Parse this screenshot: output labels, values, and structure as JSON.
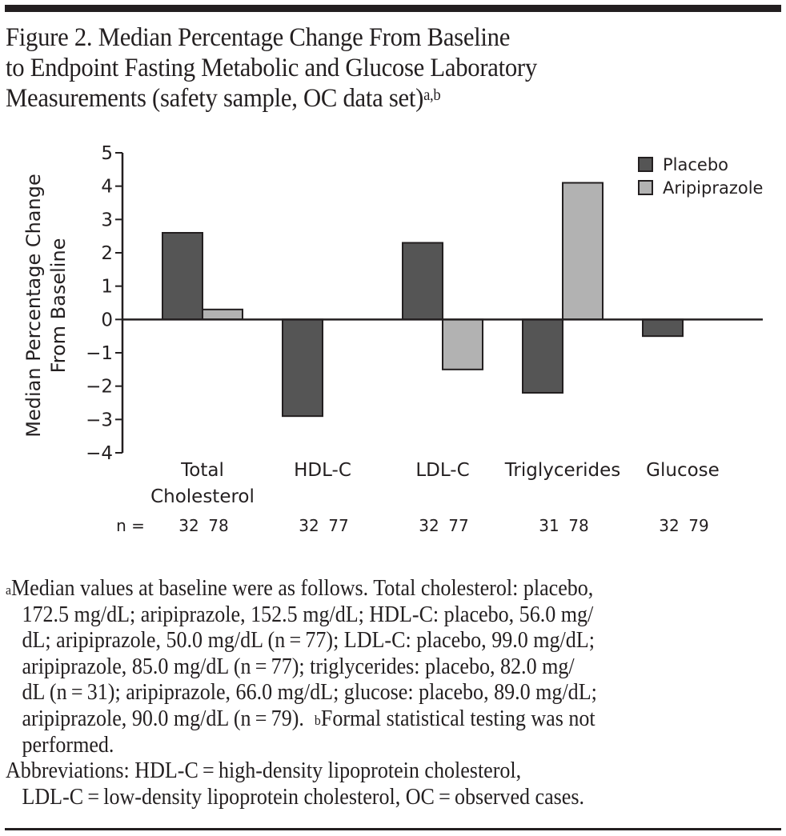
{
  "figure": {
    "title_lines": [
      "Figure 2. Median Percentage Change From Baseline",
      "to Endpoint Fasting Metabolic and Glucose Laboratory",
      "Measurements (safety sample, OC data set)"
    ],
    "title_superscript": "a,b"
  },
  "chart_data": {
    "type": "bar",
    "title": "Figure 2. Median Percentage Change From Baseline to Endpoint Fasting Metabolic and Glucose Laboratory Measurements (safety sample, OC data set)",
    "categories": [
      "Total Cholesterol",
      "HDL-C",
      "LDL-C",
      "Triglycerides",
      "Glucose"
    ],
    "category_label_lines": [
      [
        "Total",
        "Cholesterol"
      ],
      [
        "HDL-C"
      ],
      [
        "LDL-C"
      ],
      [
        "Triglycerides"
      ],
      [
        "Glucose"
      ]
    ],
    "series": [
      {
        "name": "Placebo",
        "color": "#555555",
        "values": [
          2.6,
          -2.9,
          2.3,
          -2.2,
          -0.5
        ],
        "n": [
          32,
          32,
          32,
          31,
          32
        ]
      },
      {
        "name": "Aripiprazole",
        "color": "#b2b2b2",
        "values": [
          0.3,
          0,
          -1.5,
          4.1,
          0
        ],
        "n": [
          78,
          77,
          77,
          78,
          79
        ]
      }
    ],
    "n_label": "n =",
    "xlabel": "",
    "ylabel_lines": [
      "Median Percentage Change",
      "From Baseline"
    ],
    "ylim": [
      -4,
      5
    ],
    "yticks": [
      5,
      4,
      3,
      2,
      1,
      0,
      -1,
      -2,
      -3,
      -4
    ],
    "ytick_labels": [
      "5",
      "4",
      "3",
      "2",
      "1",
      "0",
      "−1",
      "−2",
      "−3",
      "−4"
    ],
    "grid": false,
    "legend_position": "top-right"
  },
  "footnotes": {
    "a_marker": "a",
    "a_lines": [
      "Median values at baseline were as follows. Total cholesterol: placebo,",
      "172.5 mg/dL; aripiprazole, 152.5 mg/dL; HDL-C: placebo, 56.0 mg/",
      "dL; aripiprazole, 50.0 mg/dL (n = 77); LDL-C: placebo, 99.0 mg/dL;",
      "aripiprazole, 85.0 mg/dL (n = 77); triglycerides: placebo, 82.0 mg/",
      "dL (n = 31); aripiprazole, 66.0 mg/dL; glucose: placebo, 89.0 mg/dL;",
      "aripiprazole, 90.0 mg/dL (n = 79).  "
    ],
    "b_marker": "b",
    "b_text": "Formal statistical testing was not",
    "b_text_cont": "performed.",
    "abbrev_lines": [
      "Abbreviations: HDL-C = high-density lipoprotein cholesterol,",
      "LDL-C = low-density lipoprotein cholesterol, OC = observed cases."
    ]
  }
}
